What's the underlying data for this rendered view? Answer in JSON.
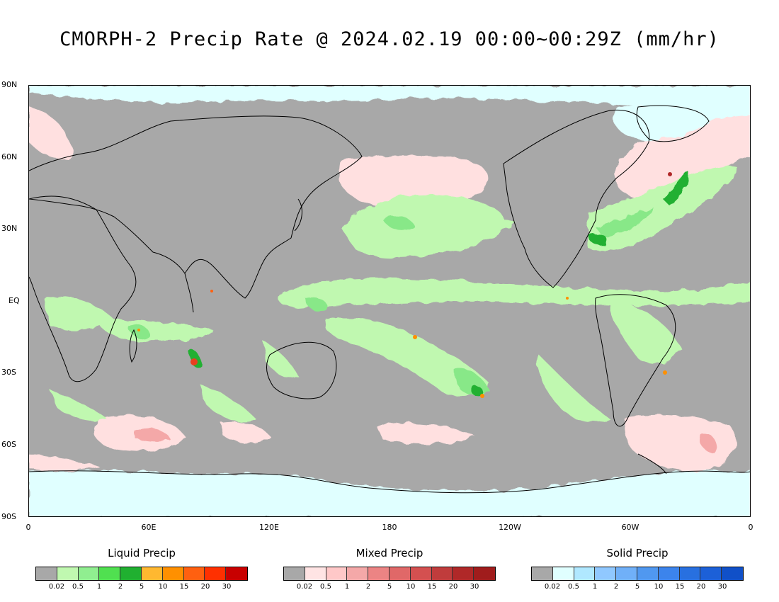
{
  "title": "CMORPH-2 Precip Rate @ 2024.02.19 00:00~00:29Z (mm/hr)",
  "map": {
    "lat_labels": [
      "90N",
      "60N",
      "30N",
      "EQ",
      "30S",
      "60S",
      "90S"
    ],
    "lon_labels": [
      "0",
      "60E",
      "120E",
      "180",
      "120W",
      "60W",
      "0"
    ],
    "colors": {
      "no_precip": "#a8a8a8",
      "ice": "#e0ffff",
      "mixed_light": "#ffe0e0",
      "mixed_med": "#f4a8a8",
      "liquid_light": "#c0f8b0",
      "liquid_med": "#88e888",
      "liquid_heavy": "#20b030",
      "liquid_extreme": "#e84020",
      "coast": "#000000"
    }
  },
  "legends": [
    {
      "title": "Liquid Precip",
      "ticks": [
        "0.02",
        "0.5",
        "1",
        "2",
        "5",
        "10",
        "15",
        "20",
        "30"
      ],
      "colors": [
        "#a8a8a8",
        "#c0f8b0",
        "#90ee90",
        "#50e050",
        "#20b030",
        "#ffb830",
        "#ff9000",
        "#ff6010",
        "#ff3000",
        "#c80000"
      ]
    },
    {
      "title": "Mixed Precip",
      "ticks": [
        "0.02",
        "0.5",
        "1",
        "2",
        "5",
        "10",
        "15",
        "20",
        "30"
      ],
      "colors": [
        "#a8a8a8",
        "#ffe4e4",
        "#ffc8c8",
        "#f4a8a8",
        "#ec8484",
        "#e06868",
        "#d45050",
        "#c03c3c",
        "#b02828",
        "#a01c1c"
      ]
    },
    {
      "title": "Solid Precip",
      "ticks": [
        "0.02",
        "0.5",
        "1",
        "2",
        "5",
        "10",
        "15",
        "20",
        "30"
      ],
      "colors": [
        "#a8a8a8",
        "#e0ffff",
        "#b0e8ff",
        "#90c8ff",
        "#70b0f8",
        "#5098f0",
        "#3c84ec",
        "#2870e0",
        "#1c60d8",
        "#1050c8"
      ]
    }
  ]
}
